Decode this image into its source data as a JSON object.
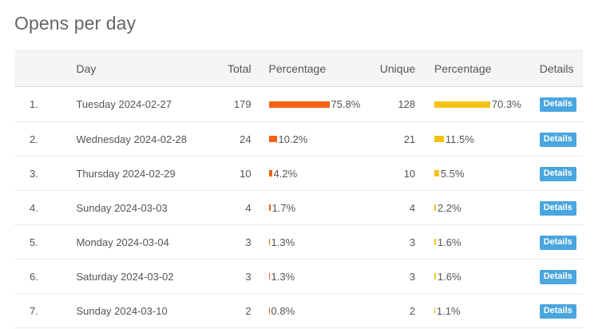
{
  "page": {
    "title": "Opens per day"
  },
  "table": {
    "headers": {
      "day": "Day",
      "total": "Total",
      "percentage_total": "Percentage",
      "unique": "Unique",
      "percentage_unique": "Percentage",
      "details": "Details"
    },
    "rows": [
      {
        "num": "1.",
        "day": "Tuesday 2024-02-27",
        "total": "179",
        "total_pct": "75.8%",
        "total_frac": 0.758,
        "unique": "128",
        "unique_pct": "70.3%",
        "unique_frac": 0.703,
        "details": "Details"
      },
      {
        "num": "2.",
        "day": "Wednesday 2024-02-28",
        "total": "24",
        "total_pct": "10.2%",
        "total_frac": 0.102,
        "unique": "21",
        "unique_pct": "11.5%",
        "unique_frac": 0.115,
        "details": "Details"
      },
      {
        "num": "3.",
        "day": "Thursday 2024-02-29",
        "total": "10",
        "total_pct": "4.2%",
        "total_frac": 0.042,
        "unique": "10",
        "unique_pct": "5.5%",
        "unique_frac": 0.055,
        "details": "Details"
      },
      {
        "num": "4.",
        "day": "Sunday 2024-03-03",
        "total": "4",
        "total_pct": "1.7%",
        "total_frac": 0.017,
        "unique": "4",
        "unique_pct": "2.2%",
        "unique_frac": 0.022,
        "details": "Details"
      },
      {
        "num": "5.",
        "day": "Monday 2024-03-04",
        "total": "3",
        "total_pct": "1.3%",
        "total_frac": 0.013,
        "unique": "3",
        "unique_pct": "1.6%",
        "unique_frac": 0.016,
        "details": "Details"
      },
      {
        "num": "6.",
        "day": "Saturday 2024-03-02",
        "total": "3",
        "total_pct": "1.3%",
        "total_frac": 0.013,
        "unique": "3",
        "unique_pct": "1.6%",
        "unique_frac": 0.016,
        "details": "Details"
      },
      {
        "num": "7.",
        "day": "Sunday 2024-03-10",
        "total": "2",
        "total_pct": "0.8%",
        "total_frac": 0.008,
        "unique": "2",
        "unique_pct": "1.1%",
        "unique_frac": 0.011,
        "details": "Details"
      }
    ]
  },
  "colors": {
    "total_bar": "#f46113",
    "unique_bar": "#f5c316",
    "details_button": "#4aa6de",
    "header_bg": "#f5f5f7"
  }
}
